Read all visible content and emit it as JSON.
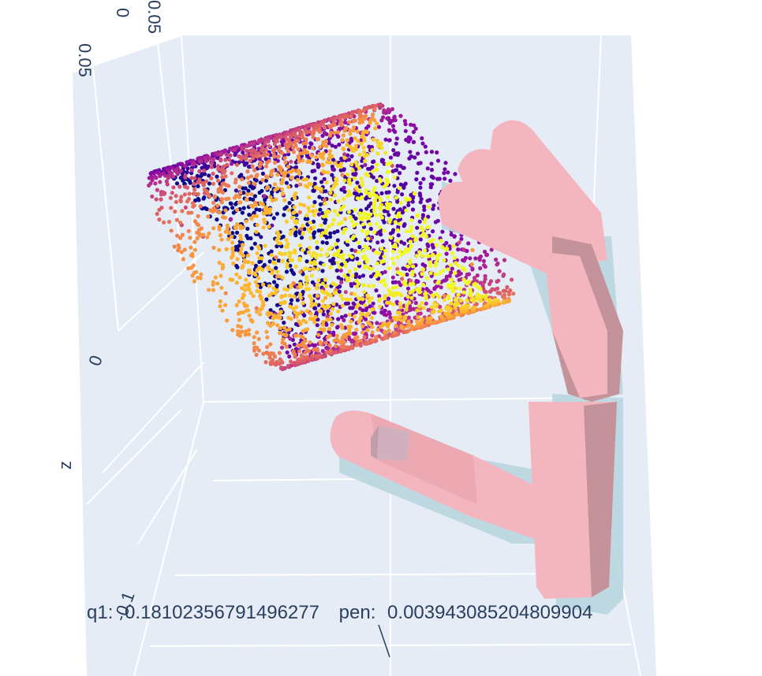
{
  "chart_data": {
    "type": "scatter",
    "subtype": "3d-scatter-with-mesh",
    "annotation": {
      "q1_label": "q1:",
      "q1_value": "0.18102356791496277",
      "pen_label": "pen:",
      "pen_value": "0.003943085204809904"
    },
    "axes": {
      "y_ticks": [
        "0.05",
        "0",
        "0.05"
      ],
      "z_title": "z",
      "z_ticks": [
        "0",
        "-0.1"
      ]
    },
    "grid": true,
    "colorscale": "plasma",
    "colors": {
      "scene_bg": "#e5ecf6",
      "grid": "#ffffff",
      "hand_mesh": "#f4b6be",
      "hand_shadow": "#b9d6df",
      "object_mesh": "#cdb2bf"
    },
    "series": [
      {
        "kind": "mesh",
        "meshes": [
          "hand-mesh",
          "hand-shadow-mesh",
          "object-mesh"
        ]
      },
      {
        "kind": "point-cloud",
        "count": 3600,
        "shape": "cylinder",
        "color_range": [
          0,
          1
        ]
      }
    ]
  }
}
